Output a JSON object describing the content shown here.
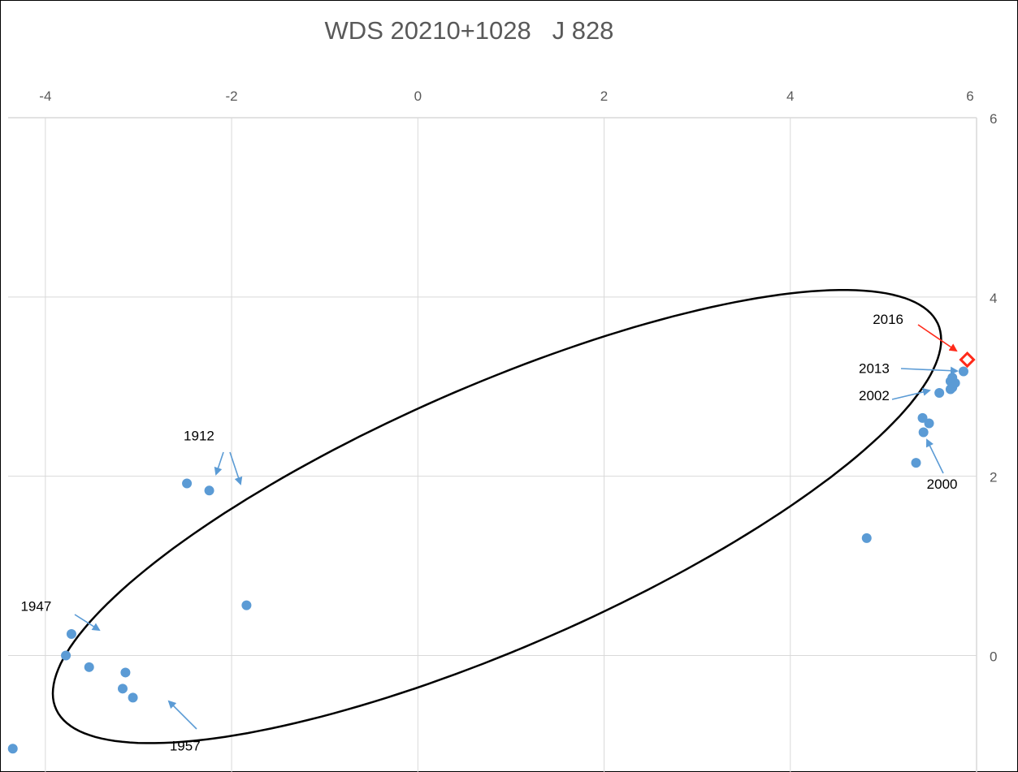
{
  "chart_data": {
    "type": "scatter",
    "title": "WDS 20210+1028   J 828",
    "xlim": [
      -4.4,
      6.0
    ],
    "ylim": [
      -1.3,
      6.0
    ],
    "x_ticks": [
      -4,
      -2,
      0,
      2,
      4,
      6
    ],
    "y_ticks": [
      0,
      2,
      4,
      6
    ],
    "x_axis_position": "top",
    "y_axis_position": "right",
    "grid": true,
    "colors": {
      "points": "#5b9bd5",
      "current": "#ff2a1a",
      "orbit": "#000000",
      "grid": "#d9d9d9"
    },
    "series": [
      {
        "points": [
          [
            -4.35,
            -1.04
          ],
          [
            -3.78,
            0.0
          ],
          [
            -3.72,
            0.24
          ],
          [
            -3.53,
            -0.13
          ],
          [
            -3.14,
            -0.19
          ],
          [
            -3.17,
            -0.37
          ],
          [
            -3.06,
            -0.47
          ],
          [
            -2.48,
            1.92
          ],
          [
            -2.24,
            1.84
          ],
          [
            -1.84,
            0.56
          ],
          [
            4.82,
            1.31
          ],
          [
            5.35,
            2.15
          ],
          [
            5.43,
            2.49
          ],
          [
            5.42,
            2.65
          ],
          [
            5.49,
            2.59
          ],
          [
            5.6,
            2.93
          ],
          [
            5.72,
            2.97
          ],
          [
            5.74,
            2.99
          ],
          [
            5.72,
            3.06
          ],
          [
            5.77,
            3.04
          ],
          [
            5.74,
            3.1
          ],
          [
            5.86,
            3.17
          ]
        ]
      }
    ],
    "current_position": [
      5.9,
      3.3
    ],
    "orbit_ellipse": {
      "center": [
        0.85,
        1.55
      ],
      "semi_major": 5.2,
      "semi_minor": 1.45,
      "angle_deg": 24.5
    },
    "annotations": [
      {
        "label": "1912",
        "pos": [
          -2.35,
          2.4
        ]
      },
      {
        "label": "1947",
        "pos": [
          -4.1,
          0.5
        ]
      },
      {
        "label": "1957",
        "pos": [
          -2.5,
          -1.06
        ]
      },
      {
        "label": "2016",
        "pos": [
          5.05,
          3.7
        ]
      },
      {
        "label": "2013",
        "pos": [
          4.9,
          3.15
        ]
      },
      {
        "label": "2002",
        "pos": [
          4.9,
          2.85
        ]
      },
      {
        "label": "2000",
        "pos": [
          5.63,
          1.86
        ]
      }
    ]
  }
}
